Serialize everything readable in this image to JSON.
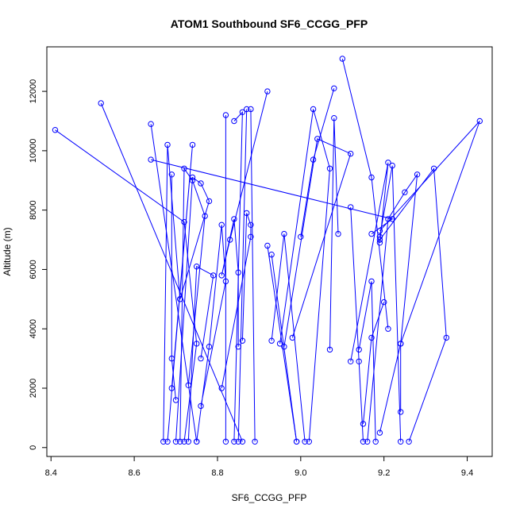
{
  "chart_data": {
    "type": "scatter",
    "title": "ATOM1 Southbound SF6_CCGG_PFP",
    "xlabel": "SF6_CCGG_PFP",
    "ylabel": "Altitude (m)",
    "xlim": [
      8.39,
      9.46
    ],
    "ylim": [
      -300,
      13500
    ],
    "x_ticks": [
      8.4,
      8.6,
      8.8,
      9.0,
      9.2,
      9.4
    ],
    "x_tick_labels": [
      "8.4",
      "8.6",
      "8.8",
      "9.0",
      "9.2",
      "9.4"
    ],
    "y_ticks": [
      0,
      2000,
      4000,
      6000,
      8000,
      10000,
      12000
    ],
    "y_tick_labels": [
      "0",
      "2000",
      "4000",
      "6000",
      "8000",
      "10000",
      "12000"
    ],
    "grid": false,
    "legend": "none",
    "series_color": "#0000ff",
    "series": [
      {
        "profiles": [
          [
            [
              8.41,
              10700
            ],
            [
              8.72,
              7600
            ],
            [
              8.75,
              3500
            ],
            [
              8.72,
              200
            ]
          ],
          [
            [
              8.52,
              11600
            ],
            [
              8.86,
              200
            ]
          ],
          [
            [
              8.64,
              10900
            ],
            [
              8.75,
              200
            ]
          ],
          [
            [
              8.64,
              9700
            ],
            [
              9.22,
              7700
            ],
            [
              9.17,
              7200
            ]
          ],
          [
            [
              8.67,
              200
            ],
            [
              8.68,
              10200
            ],
            [
              8.71,
              5000
            ]
          ],
          [
            [
              8.68,
              200
            ],
            [
              8.74,
              10200
            ],
            [
              8.69,
              2000
            ]
          ],
          [
            [
              8.69,
              9200
            ],
            [
              8.69,
              3000
            ],
            [
              8.7,
              1600
            ]
          ],
          [
            [
              8.7,
              200
            ],
            [
              8.74,
              9100
            ],
            [
              8.76,
              8900
            ],
            [
              8.78,
              8300
            ],
            [
              8.71,
              5000
            ]
          ],
          [
            [
              8.71,
              200
            ],
            [
              8.72,
              9400
            ],
            [
              8.74,
              9000
            ],
            [
              8.77,
              7800
            ],
            [
              8.73,
              2100
            ]
          ],
          [
            [
              8.73,
              200
            ],
            [
              8.75,
              6100
            ],
            [
              8.79,
              5800
            ],
            [
              8.76,
              3000
            ]
          ],
          [
            [
              8.75,
              200
            ],
            [
              8.78,
              3400
            ],
            [
              8.81,
              7500
            ],
            [
              8.82,
              5600
            ],
            [
              8.76,
              1400
            ]
          ],
          [
            [
              8.82,
              11200
            ],
            [
              8.82,
              200
            ]
          ],
          [
            [
              8.84,
              11000
            ],
            [
              8.86,
              11300
            ],
            [
              8.84,
              200
            ]
          ],
          [
            [
              8.87,
              11400
            ],
            [
              8.85,
              200
            ]
          ],
          [
            [
              8.88,
              11400
            ],
            [
              8.89,
              200
            ]
          ],
          [
            [
              8.92,
              12000
            ],
            [
              8.83,
              7000
            ],
            [
              8.81,
              5800
            ],
            [
              8.84,
              7700
            ],
            [
              8.85,
              5900
            ],
            [
              8.85,
              3400
            ]
          ],
          [
            [
              8.86,
              3600
            ],
            [
              8.87,
              7900
            ],
            [
              8.88,
              7500
            ],
            [
              8.88,
              7100
            ],
            [
              8.81,
              2000
            ]
          ],
          [
            [
              8.92,
              6800
            ],
            [
              8.99,
              200
            ]
          ],
          [
            [
              8.93,
              6500
            ],
            [
              8.99,
              200
            ]
          ],
          [
            [
              8.93,
              3600
            ],
            [
              8.96,
              7200
            ],
            [
              9.01,
              200
            ]
          ],
          [
            [
              8.95,
              3500
            ],
            [
              9.03,
              11400
            ],
            [
              9.07,
              9400
            ],
            [
              9.02,
              200
            ]
          ],
          [
            [
              8.96,
              3400
            ],
            [
              9.04,
              10400
            ],
            [
              9.12,
              9900
            ],
            [
              8.98,
              3700
            ]
          ],
          [
            [
              9.0,
              7100
            ],
            [
              9.03,
              9700
            ],
            [
              9.08,
              12100
            ]
          ],
          [
            [
              9.07,
              3300
            ],
            [
              9.08,
              11100
            ],
            [
              9.09,
              7200
            ]
          ],
          [
            [
              9.1,
              13100
            ],
            [
              9.17,
              9100
            ],
            [
              9.21,
              4000
            ]
          ],
          [
            [
              9.12,
              8100
            ],
            [
              9.14,
              2900
            ],
            [
              9.15,
              200
            ]
          ],
          [
            [
              9.12,
              2900
            ],
            [
              9.21,
              9600
            ],
            [
              9.19,
              6900
            ]
          ],
          [
            [
              9.14,
              3300
            ],
            [
              9.17,
              5600
            ],
            [
              9.18,
              200
            ]
          ],
          [
            [
              9.15,
              800
            ],
            [
              9.17,
              3700
            ],
            [
              9.2,
              4900
            ]
          ],
          [
            [
              9.16,
              200
            ],
            [
              9.21,
              7700
            ],
            [
              9.25,
              8600
            ],
            [
              9.28,
              9200
            ],
            [
              9.24,
              3500
            ],
            [
              9.24,
              1200
            ]
          ],
          [
            [
              9.19,
              7000
            ],
            [
              9.32,
              9400
            ],
            [
              9.35,
              3700
            ],
            [
              9.26,
              200
            ]
          ],
          [
            [
              9.19,
              7300
            ],
            [
              9.43,
              11000
            ],
            [
              9.24,
              3500
            ],
            [
              9.19,
              500
            ]
          ],
          [
            [
              9.19,
              7100
            ],
            [
              9.22,
              9500
            ],
            [
              9.24,
              200
            ]
          ]
        ]
      }
    ]
  }
}
